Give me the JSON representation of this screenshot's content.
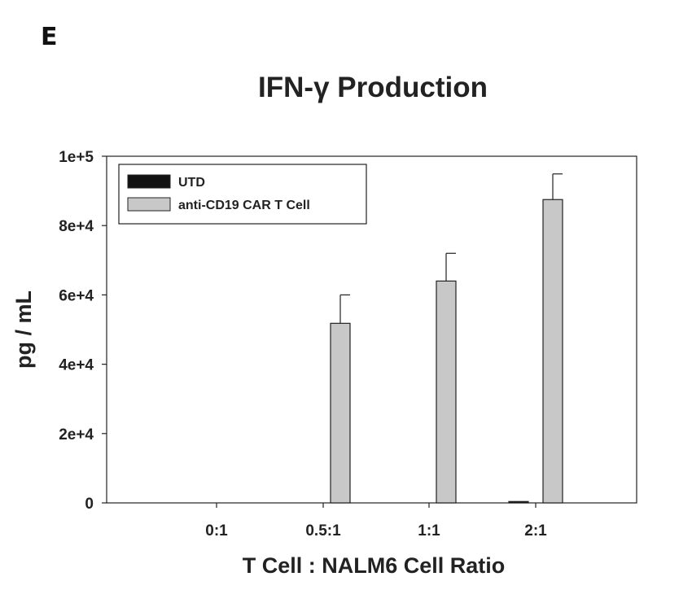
{
  "panel_label": "E",
  "chart_data": {
    "type": "bar",
    "title": "IFN-γ Production",
    "xlabel": "T Cell : NALM6 Cell Ratio",
    "ylabel": "pg / mL",
    "categories": [
      "0:1",
      "0.5:1",
      "1:1",
      "2:1"
    ],
    "ylim": [
      0,
      100000
    ],
    "yticks": [
      0,
      20000,
      40000,
      60000,
      80000,
      100000
    ],
    "ytick_labels": [
      "0",
      "2e+4",
      "4e+4",
      "6e+4",
      "8e+4",
      "1e+5"
    ],
    "grid": false,
    "legend_position": "top-left",
    "series": [
      {
        "name": "UTD",
        "color": "#111111",
        "values": [
          0,
          0,
          0,
          400
        ],
        "errors": [
          0,
          0,
          0,
          0
        ]
      },
      {
        "name": "anti-CD19 CAR T Cell",
        "color": "#c8c8c8",
        "values": [
          0,
          51800,
          64000,
          87500
        ],
        "errors": [
          0,
          8200,
          8000,
          7400
        ]
      }
    ]
  }
}
